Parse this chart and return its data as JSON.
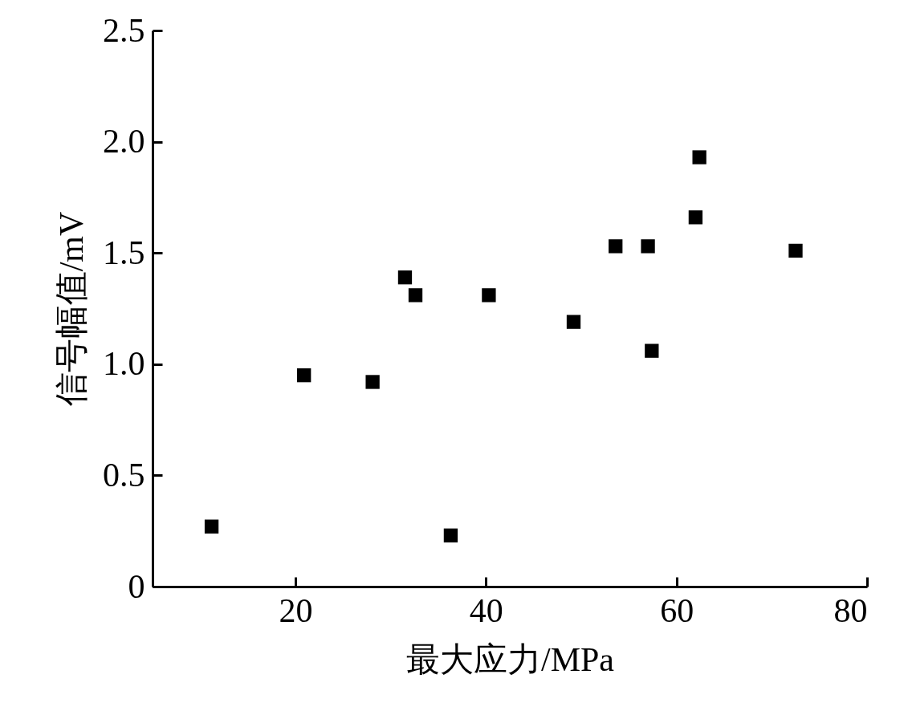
{
  "chart_data": {
    "type": "scatter",
    "xlabel": "最大应力/MPa",
    "ylabel": "信号幅值/mV",
    "x": [
      11.2,
      20.9,
      28.1,
      31.5,
      32.6,
      36.3,
      40.3,
      49.2,
      53.6,
      57.0,
      57.4,
      62.0,
      62.4,
      72.5
    ],
    "series": [
      {
        "color": "#000000",
        "values": [
          0.27,
          0.95,
          0.92,
          1.39,
          1.31,
          0.23,
          1.31,
          1.19,
          1.53,
          1.53,
          1.06,
          1.66,
          1.93,
          1.51
        ]
      }
    ],
    "xlim": [
      5,
      80
    ],
    "xticks": [
      20,
      40,
      60,
      80
    ],
    "ylim": [
      0,
      2.5
    ],
    "yticks": [
      {
        "value": 0,
        "label": "0"
      },
      0.5,
      {
        "value": 1,
        "label": "1.0"
      },
      1.5,
      {
        "value": 2,
        "label": "2.0"
      },
      2.5
    ],
    "marker": "square",
    "grid": false,
    "legend": false
  }
}
